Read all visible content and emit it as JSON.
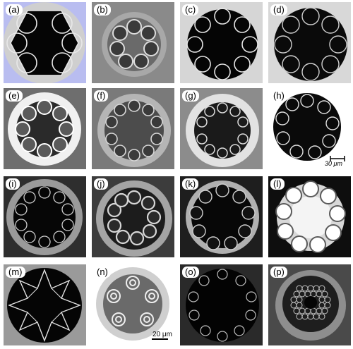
{
  "panels": [
    {
      "label": "(a)"
    },
    {
      "label": "(b)"
    },
    {
      "label": "(c)"
    },
    {
      "label": "(d)"
    },
    {
      "label": "(e)"
    },
    {
      "label": "(f)"
    },
    {
      "label": "(g)"
    },
    {
      "label": "(h)"
    },
    {
      "label": "(i)"
    },
    {
      "label": "(j)"
    },
    {
      "label": "(k)"
    },
    {
      "label": "(l)"
    },
    {
      "label": "(m)"
    },
    {
      "label": "(n)"
    },
    {
      "label": "(o)"
    },
    {
      "label": "(p)"
    }
  ],
  "scale_bars": {
    "h": "30 μm",
    "n": "20 μm"
  }
}
